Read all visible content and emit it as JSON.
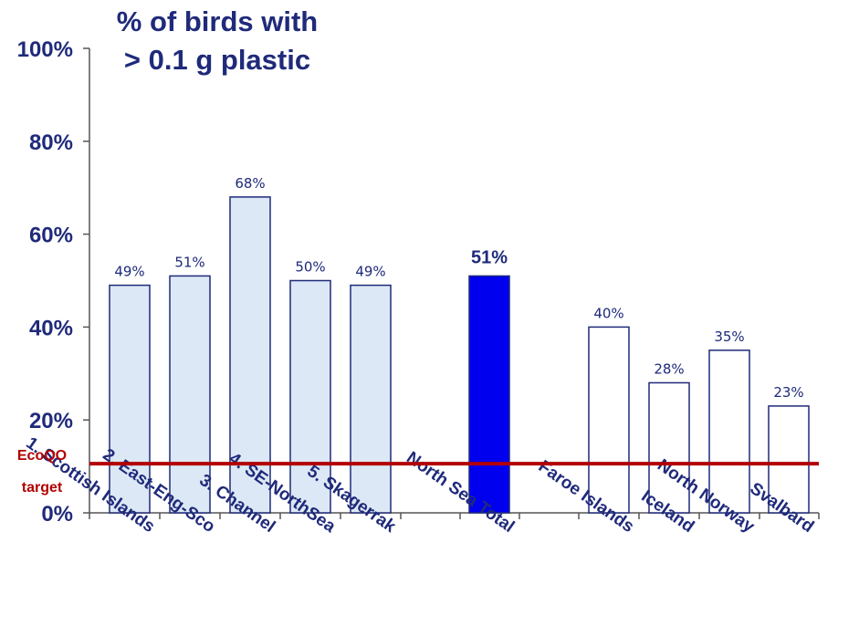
{
  "chart_data": {
    "type": "bar",
    "title_lines": [
      "% of birds with",
      "> 0.1 g plastic"
    ],
    "categories": [
      "1. Scottish Islands",
      "2. East-Eng-Sco",
      "3. Channel",
      "4. SE-NorthSea",
      "5. Skagerrak",
      "North Sea Total",
      "Faroe Islands",
      "Iceland",
      "North Norway",
      "Svalbard"
    ],
    "values": [
      49,
      51,
      68,
      50,
      49,
      51,
      40,
      28,
      35,
      23
    ],
    "data_labels": [
      "49%",
      "51%",
      "68%",
      "50%",
      "49%",
      "51%",
      "40%",
      "28%",
      "35%",
      "23%"
    ],
    "groups": [
      "north-sea-region",
      "north-sea-region",
      "north-sea-region",
      "north-sea-region",
      "north-sea-region",
      "total",
      "other",
      "other",
      "other",
      "other"
    ],
    "ylim": [
      0,
      100
    ],
    "yticks": [
      0,
      20,
      40,
      60,
      80,
      100
    ],
    "ytick_labels": [
      "0%",
      "20%",
      "40%",
      "60%",
      "80%",
      "100%"
    ],
    "target": {
      "value": 10,
      "label_lines": [
        "EcoQO",
        "target"
      ],
      "color": "#b30000"
    },
    "colors": {
      "region_fill": "#dce8f5",
      "total_fill": "#0000ee",
      "other_fill": "#ffffff",
      "bar_stroke": "#1f2a7a",
      "text": "#1f2a7a"
    },
    "grid": false
  }
}
